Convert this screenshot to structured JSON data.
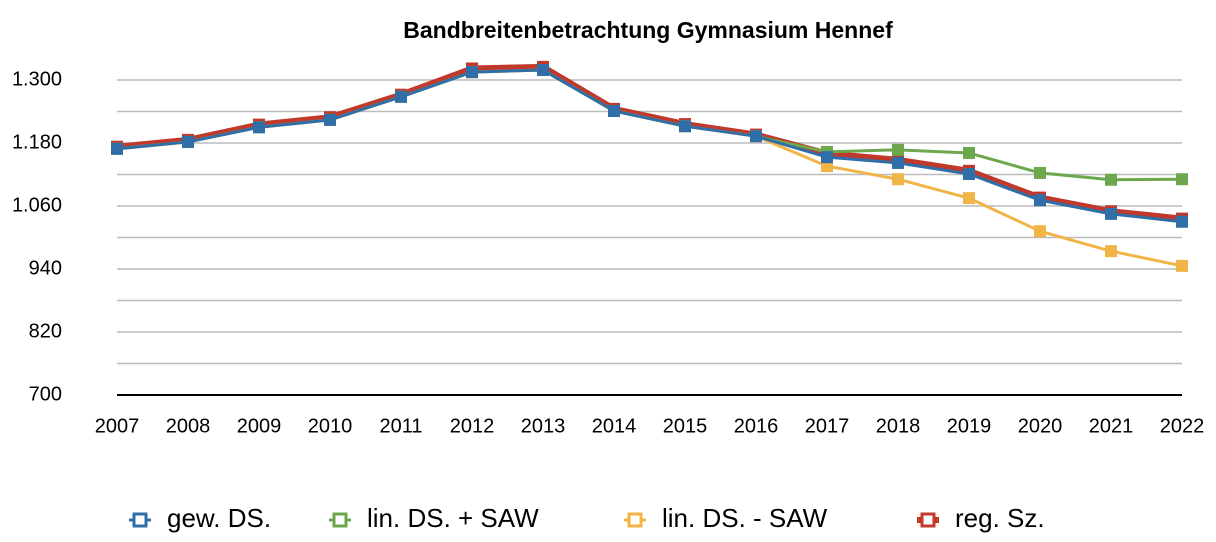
{
  "chart_data": {
    "type": "line",
    "title": "Bandbreitenbetrachtung Gymnasium Hennef",
    "categories": [
      "2007",
      "2008",
      "2009",
      "2010",
      "2011",
      "2012",
      "2013",
      "2014",
      "2015",
      "2016",
      "2017",
      "2018",
      "2019",
      "2020",
      "2021",
      "2022"
    ],
    "series": [
      {
        "name": "reg. Sz.",
        "color": "#c0392b",
        "values": [
          1173,
          1186,
          1215,
          1229,
          1272,
          1322,
          1325,
          1245,
          1216,
          1196,
          1160,
          1148,
          1127,
          1076,
          1050,
          1036
        ]
      },
      {
        "name": "lin. DS. + SAW",
        "color": "#6ea84e",
        "values": [
          1169,
          1182,
          1210,
          1224,
          1268,
          1315,
          1319,
          1241,
          1212,
          1193,
          1163,
          1167,
          1161,
          1123,
          1110,
          1111
        ]
      },
      {
        "name": "lin. DS. - SAW",
        "color": "#f0b447",
        "values": [
          1169,
          1182,
          1210,
          1224,
          1268,
          1315,
          1319,
          1241,
          1212,
          1193,
          1136,
          1111,
          1075,
          1012,
          974,
          946
        ]
      },
      {
        "name": "gew. DS.",
        "color": "#2f6ea6",
        "values": [
          1169,
          1182,
          1210,
          1224,
          1268,
          1315,
          1319,
          1241,
          1212,
          1193,
          1153,
          1142,
          1121,
          1071,
          1045,
          1030
        ]
      }
    ],
    "legend_order": [
      3,
      1,
      2,
      0
    ],
    "ylim": [
      700,
      1300
    ],
    "yticks": [
      {
        "value": 700,
        "label": "700"
      },
      {
        "value": 820,
        "label": "820"
      },
      {
        "value": 940,
        "label": "940"
      },
      {
        "value": 1060,
        "label": "1.060"
      },
      {
        "value": 1180,
        "label": "1.180"
      },
      {
        "value": 1300,
        "label": "1.300"
      }
    ],
    "ygrid_minor": [
      760,
      880,
      1000,
      1120,
      1240
    ],
    "grid": true,
    "legend": "bottom"
  }
}
